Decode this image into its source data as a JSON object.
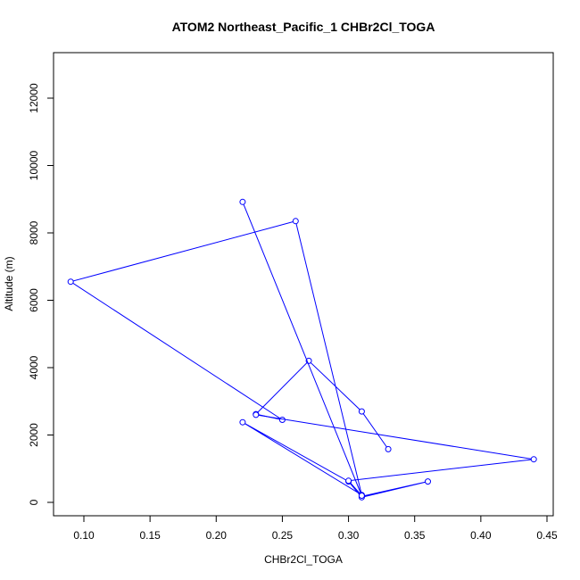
{
  "chart_data": {
    "type": "line",
    "title": "ATOM2 Northeast_Pacific_1 CHBr2Cl_TOGA",
    "xlabel": "CHBr2Cl_TOGA",
    "ylabel": "Altitude (m)",
    "xlim": [
      0.08,
      0.45
    ],
    "ylim": [
      -400,
      13300
    ],
    "x_ticks": [
      0.1,
      0.15,
      0.2,
      0.25,
      0.3,
      0.35,
      0.4,
      0.45
    ],
    "x_tick_labels": [
      "0.10",
      "0.15",
      "0.20",
      "0.25",
      "0.30",
      "0.35",
      "0.40",
      "0.45"
    ],
    "y_ticks": [
      0,
      2000,
      4000,
      6000,
      8000,
      10000,
      12000
    ],
    "y_tick_labels": [
      "0",
      "2000",
      "4000",
      "6000",
      "8000",
      "10000",
      "12000"
    ],
    "grid": false,
    "series": [
      {
        "color": "#0000ff",
        "marker": "open-circle",
        "x": [
          0.31,
          0.36,
          0.31,
          0.3,
          0.22,
          0.31,
          0.26,
          0.09,
          0.25,
          0.23,
          0.27,
          0.31,
          0.33
        ],
        "y": [
          180,
          620,
          150,
          620,
          2380,
          220,
          8350,
          6550,
          2450,
          2620,
          4200,
          2700,
          1580
        ]
      },
      {
        "color": "#0000ff",
        "marker": "open-circle",
        "x": [
          0.22,
          0.31,
          0.3,
          0.44,
          0.23
        ],
        "y": [
          8920,
          200,
          640,
          1280,
          2600
        ]
      }
    ]
  }
}
